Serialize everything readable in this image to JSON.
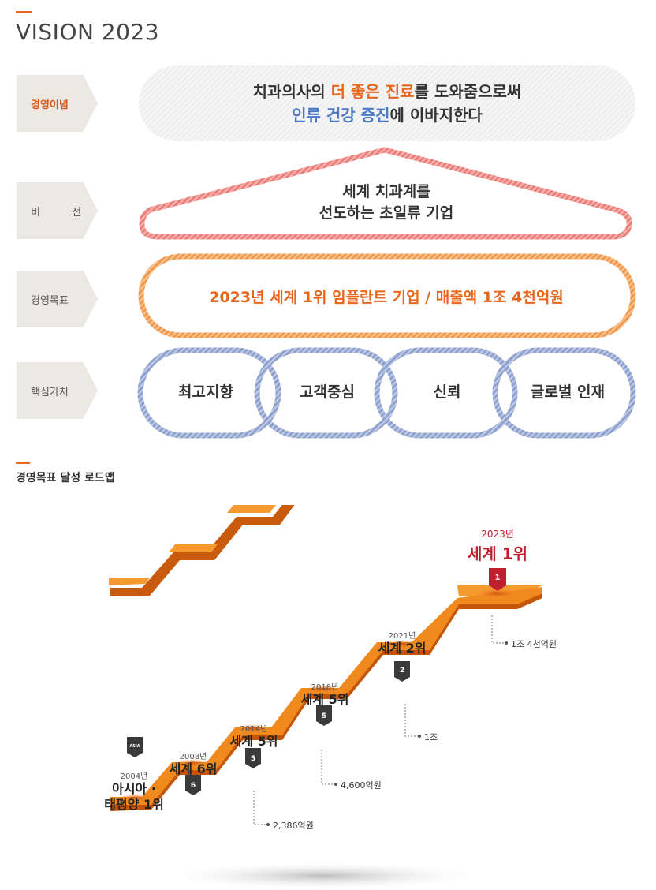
{
  "header": {
    "title": "VISION 2023"
  },
  "tags": {
    "philosophy": "경영이념",
    "vision": "비 전",
    "goal": "경영목표",
    "values": "핵심가치"
  },
  "mission": {
    "line1_a": "치과의사의 ",
    "line1_b": "더 좋은 진료",
    "line1_c": "를 도와줌으로써",
    "line2_a": "인류 건강 증진",
    "line2_b": "에 이바지한다"
  },
  "vision": {
    "line1": "세계 치과계를",
    "line2": "선도하는 초일류 기업"
  },
  "goal": {
    "text": "2023년 세계 1위 임플란트 기업 / 매출액 1조 4천억원"
  },
  "core_values": [
    "최고지향",
    "고객중심",
    "신뢰",
    "글로벌 인재"
  ],
  "roadmap": {
    "title": "경영목표 달성 로드맵",
    "steps": [
      {
        "year": "2004년",
        "rank": "아시아 ·",
        "rank2": "태평양 1위",
        "badge": "ASIA"
      },
      {
        "year": "2008년",
        "rank": "세계 6위",
        "badge": "6"
      },
      {
        "year": "2014년",
        "rank": "세계 5위",
        "badge": "5"
      },
      {
        "year": "2018년",
        "rank": "세계 5위",
        "badge": "5"
      },
      {
        "year": "2021년",
        "rank": "세계 2위",
        "badge": "2"
      },
      {
        "year": "2023년",
        "rank": "세계 1위",
        "badge": "1"
      }
    ],
    "sales": [
      "2,386억원",
      "4,600억원",
      "1조",
      "1조 4천억원"
    ]
  },
  "colors": {
    "accent": "#e8661c",
    "blue": "#4a79c8",
    "red": "#c01f2f",
    "stair": "#f08a1e"
  }
}
